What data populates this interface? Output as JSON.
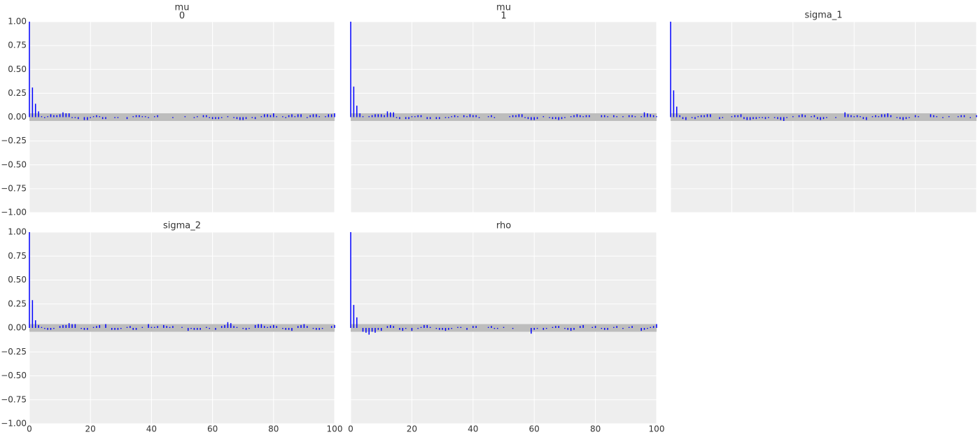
{
  "chart_data": [
    {
      "type": "stem",
      "title": "mu",
      "subtitle": "0",
      "color": "#0000ff",
      "band": [
        -0.04,
        0.04
      ],
      "grid": true,
      "x": [
        0,
        1,
        2,
        3,
        4,
        5,
        6,
        7,
        8,
        9,
        10,
        11,
        12,
        13,
        14,
        15,
        16,
        17,
        18,
        19,
        20,
        21,
        22,
        23,
        24,
        25,
        26,
        27,
        28,
        29,
        30,
        31,
        32,
        33,
        34,
        35,
        36,
        37,
        38,
        39,
        40,
        41,
        42,
        43,
        44,
        45,
        46,
        47,
        48,
        49,
        50,
        51,
        52,
        53,
        54,
        55,
        56,
        57,
        58,
        59,
        60,
        61,
        62,
        63,
        64,
        65,
        66,
        67,
        68,
        69,
        70,
        71,
        72,
        73,
        74,
        75,
        76,
        77,
        78,
        79,
        80,
        81,
        82,
        83,
        84,
        85,
        86,
        87,
        88,
        89,
        90,
        91,
        92,
        93,
        94,
        95,
        96,
        97,
        98,
        99,
        100
      ],
      "values": [
        1,
        0.31,
        0.14,
        0.06,
        0.01,
        -0.01,
        0.01,
        0.03,
        0.02,
        0.02,
        0.03,
        0.05,
        0.04,
        0.04,
        -0.01,
        -0.01,
        -0.02,
        0.0,
        -0.03,
        -0.03,
        -0.01,
        0.01,
        0.02,
        0.01,
        -0.02,
        -0.02,
        0.0,
        0.0,
        -0.01,
        -0.01,
        0.0,
        0.0,
        -0.02,
        0.0,
        0.01,
        0.02,
        0.02,
        0.01,
        0.01,
        -0.01,
        0.0,
        0.01,
        0.02,
        0.0,
        0.0,
        0.0,
        0.0,
        -0.01,
        0.0,
        0.0,
        0.0,
        0.01,
        0.0,
        0.0,
        -0.01,
        0.01,
        0.0,
        0.02,
        0.02,
        -0.01,
        -0.02,
        -0.02,
        -0.02,
        -0.01,
        0.0,
        0.01,
        0.0,
        -0.01,
        -0.02,
        -0.03,
        -0.03,
        -0.02,
        0.0,
        -0.01,
        -0.02,
        0.0,
        0.01,
        0.03,
        0.03,
        0.02,
        0.04,
        0.01,
        0.0,
        0.01,
        -0.01,
        0.02,
        0.03,
        0.01,
        0.03,
        0.03,
        0.0,
        -0.01,
        0.02,
        0.03,
        0.03,
        0.01,
        0.0,
        0.01,
        0.03,
        0.03,
        0.04
      ],
      "xlim": [
        0,
        100
      ],
      "xticks": [
        0,
        20,
        40,
        60,
        80,
        100
      ],
      "ylim": [
        -1,
        1
      ],
      "yticks": [
        {
          "value": 1,
          "label": "1.00"
        },
        {
          "value": 0.75,
          "label": "0.75"
        },
        {
          "value": 0.5,
          "label": "0.50"
        },
        {
          "value": 0.25,
          "label": "0.25"
        },
        {
          "value": 0,
          "label": "0.00"
        },
        {
          "value": -0.25,
          "label": "−0.25"
        },
        {
          "value": -0.5,
          "label": "−0.50"
        },
        {
          "value": -0.75,
          "label": "−0.75"
        },
        {
          "value": -1,
          "label": "−1.00"
        }
      ]
    },
    {
      "type": "stem",
      "title": "mu",
      "subtitle": "1",
      "color": "#0000ff",
      "band": [
        -0.04,
        0.04
      ],
      "grid": true,
      "x": [
        0,
        1,
        2,
        3,
        4,
        5,
        6,
        7,
        8,
        9,
        10,
        11,
        12,
        13,
        14,
        15,
        16,
        17,
        18,
        19,
        20,
        21,
        22,
        23,
        24,
        25,
        26,
        27,
        28,
        29,
        30,
        31,
        32,
        33,
        34,
        35,
        36,
        37,
        38,
        39,
        40,
        41,
        42,
        43,
        44,
        45,
        46,
        47,
        48,
        49,
        50,
        51,
        52,
        53,
        54,
        55,
        56,
        57,
        58,
        59,
        60,
        61,
        62,
        63,
        64,
        65,
        66,
        67,
        68,
        69,
        70,
        71,
        72,
        73,
        74,
        75,
        76,
        77,
        78,
        79,
        80,
        81,
        82,
        83,
        84,
        85,
        86,
        87,
        88,
        89,
        90,
        91,
        92,
        93,
        94,
        95,
        96,
        97,
        98,
        99,
        100
      ],
      "values": [
        1,
        0.32,
        0.12,
        0.04,
        0.01,
        0.0,
        0.01,
        0.02,
        0.03,
        0.03,
        0.03,
        0.02,
        0.06,
        0.05,
        0.05,
        -0.01,
        -0.02,
        0.0,
        -0.02,
        -0.02,
        0.01,
        0.01,
        0.02,
        0.02,
        0.0,
        -0.02,
        -0.02,
        0.0,
        -0.02,
        -0.02,
        0.0,
        -0.01,
        -0.01,
        0.01,
        0.02,
        0.01,
        0.0,
        0.02,
        0.01,
        0.03,
        0.02,
        0.02,
        -0.01,
        0.0,
        0.0,
        0.01,
        0.02,
        -0.01,
        0.0,
        0.0,
        0.0,
        0.0,
        0.01,
        0.02,
        0.02,
        0.03,
        0.03,
        -0.01,
        -0.02,
        -0.03,
        -0.03,
        -0.02,
        0.0,
        0.01,
        0.0,
        -0.01,
        -0.02,
        -0.02,
        -0.03,
        -0.02,
        -0.01,
        0.0,
        0.01,
        0.02,
        0.03,
        0.02,
        0.01,
        0.02,
        0.02,
        0.0,
        0.0,
        0.0,
        0.02,
        0.02,
        0.01,
        0.0,
        0.02,
        0.01,
        0.0,
        0.01,
        0.0,
        0.02,
        0.02,
        0.01,
        0.0,
        0.01,
        0.05,
        0.04,
        0.03,
        0.02,
        0.01
      ],
      "xlim": [
        0,
        100
      ],
      "xticks": [
        0,
        20,
        40,
        60,
        80,
        100
      ],
      "ylim": [
        -1,
        1
      ],
      "yticks": [
        {
          "value": 1,
          "label": "1.00"
        },
        {
          "value": 0.75,
          "label": "0.75"
        },
        {
          "value": 0.5,
          "label": "0.50"
        },
        {
          "value": 0.25,
          "label": "0.25"
        },
        {
          "value": 0,
          "label": "0.00"
        },
        {
          "value": -0.25,
          "label": "−0.25"
        },
        {
          "value": -0.5,
          "label": "−0.50"
        },
        {
          "value": -0.75,
          "label": "−0.75"
        },
        {
          "value": -1,
          "label": "−1.00"
        }
      ]
    },
    {
      "type": "stem",
      "title": "sigma_1",
      "color": "#0000ff",
      "band": [
        -0.04,
        0.04
      ],
      "grid": true,
      "x": [
        0,
        1,
        2,
        3,
        4,
        5,
        6,
        7,
        8,
        9,
        10,
        11,
        12,
        13,
        14,
        15,
        16,
        17,
        18,
        19,
        20,
        21,
        22,
        23,
        24,
        25,
        26,
        27,
        28,
        29,
        30,
        31,
        32,
        33,
        34,
        35,
        36,
        37,
        38,
        39,
        40,
        41,
        42,
        43,
        44,
        45,
        46,
        47,
        48,
        49,
        50,
        51,
        52,
        53,
        54,
        55,
        56,
        57,
        58,
        59,
        60,
        61,
        62,
        63,
        64,
        65,
        66,
        67,
        68,
        69,
        70,
        71,
        72,
        73,
        74,
        75,
        76,
        77,
        78,
        79,
        80,
        81,
        82,
        83,
        84,
        85,
        86,
        87,
        88,
        89,
        90,
        91,
        92,
        93,
        94,
        95,
        96,
        97,
        98,
        99,
        100
      ],
      "values": [
        1,
        0.28,
        0.11,
        0.02,
        -0.02,
        -0.03,
        0.0,
        -0.01,
        -0.02,
        0.01,
        0.02,
        0.02,
        0.03,
        0.03,
        0.0,
        0.0,
        -0.02,
        -0.01,
        0.0,
        0.0,
        0.01,
        0.02,
        0.02,
        0.03,
        -0.02,
        -0.03,
        -0.03,
        -0.02,
        -0.02,
        -0.01,
        -0.01,
        -0.02,
        -0.01,
        0.0,
        -0.01,
        -0.02,
        -0.03,
        -0.04,
        -0.01,
        0.0,
        0.01,
        0.0,
        0.02,
        0.03,
        0.02,
        0.0,
        0.01,
        0.02,
        -0.02,
        -0.03,
        -0.02,
        -0.01,
        0.0,
        0.0,
        -0.01,
        0.0,
        0.0,
        0.05,
        0.03,
        0.02,
        0.01,
        0.02,
        0.01,
        -0.02,
        -0.03,
        0.0,
        0.01,
        0.02,
        0.01,
        0.03,
        0.03,
        0.04,
        0.02,
        0.0,
        -0.01,
        -0.02,
        -0.03,
        -0.02,
        -0.01,
        0.0,
        0.02,
        0.01,
        0.0,
        0.0,
        0.0,
        0.03,
        0.02,
        0.01,
        0.0,
        -0.01,
        0.0,
        0.01,
        0.0,
        0.0,
        0.01,
        0.02,
        0.02,
        0.0,
        -0.01,
        0.0,
        0.02
      ],
      "xlim": [
        0,
        100
      ],
      "xticks": [
        0,
        20,
        40,
        60,
        80,
        100
      ],
      "ylim": [
        -1,
        1
      ],
      "yticks": [
        {
          "value": 1,
          "label": "1.00"
        },
        {
          "value": 0.75,
          "label": "0.75"
        },
        {
          "value": 0.5,
          "label": "0.50"
        },
        {
          "value": 0.25,
          "label": "0.25"
        },
        {
          "value": 0,
          "label": "0.00"
        },
        {
          "value": -0.25,
          "label": "−0.25"
        },
        {
          "value": -0.5,
          "label": "−0.50"
        },
        {
          "value": -0.75,
          "label": "−0.75"
        },
        {
          "value": -1,
          "label": "−1.00"
        }
      ]
    },
    {
      "type": "stem",
      "title": "sigma_2",
      "color": "#0000ff",
      "band": [
        -0.04,
        0.04
      ],
      "grid": true,
      "x": [
        0,
        1,
        2,
        3,
        4,
        5,
        6,
        7,
        8,
        9,
        10,
        11,
        12,
        13,
        14,
        15,
        16,
        17,
        18,
        19,
        20,
        21,
        22,
        23,
        24,
        25,
        26,
        27,
        28,
        29,
        30,
        31,
        32,
        33,
        34,
        35,
        36,
        37,
        38,
        39,
        40,
        41,
        42,
        43,
        44,
        45,
        46,
        47,
        48,
        49,
        50,
        51,
        52,
        53,
        54,
        55,
        56,
        57,
        58,
        59,
        60,
        61,
        62,
        63,
        64,
        65,
        66,
        67,
        68,
        69,
        70,
        71,
        72,
        73,
        74,
        75,
        76,
        77,
        78,
        79,
        80,
        81,
        82,
        83,
        84,
        85,
        86,
        87,
        88,
        89,
        90,
        91,
        92,
        93,
        94,
        95,
        96,
        97,
        98,
        99,
        100
      ],
      "values": [
        1,
        0.29,
        0.08,
        0.03,
        0.01,
        -0.01,
        -0.02,
        -0.02,
        -0.01,
        0.0,
        0.02,
        0.03,
        0.03,
        0.05,
        0.04,
        0.04,
        0.0,
        -0.01,
        -0.02,
        -0.02,
        0.0,
        0.01,
        0.02,
        0.03,
        0.0,
        0.04,
        0.0,
        -0.02,
        -0.02,
        -0.02,
        -0.01,
        0.0,
        0.01,
        0.02,
        -0.02,
        -0.02,
        0.0,
        0.01,
        0.0,
        0.04,
        0.01,
        0.01,
        0.02,
        0.0,
        0.03,
        0.02,
        0.01,
        0.02,
        0.0,
        0.0,
        0.01,
        0.0,
        -0.03,
        -0.01,
        -0.02,
        -0.02,
        -0.02,
        0.0,
        0.01,
        -0.01,
        0.0,
        -0.02,
        0.0,
        0.02,
        0.03,
        0.06,
        0.05,
        0.02,
        0.01,
        0.0,
        -0.01,
        -0.02,
        -0.01,
        0.0,
        0.03,
        0.04,
        0.04,
        0.02,
        0.01,
        0.02,
        0.03,
        0.02,
        0.0,
        -0.01,
        -0.02,
        -0.02,
        -0.03,
        0.0,
        0.02,
        0.03,
        0.04,
        0.02,
        0.0,
        -0.01,
        -0.02,
        -0.02,
        -0.01,
        0.0,
        0.0,
        0.02,
        0.03
      ],
      "xlim": [
        0,
        100
      ],
      "xticks": [
        0,
        20,
        40,
        60,
        80,
        100
      ],
      "ylim": [
        -1,
        1
      ],
      "yticks": [
        {
          "value": 1,
          "label": "1.00"
        },
        {
          "value": 0.75,
          "label": "0.75"
        },
        {
          "value": 0.5,
          "label": "0.50"
        },
        {
          "value": 0.25,
          "label": "0.25"
        },
        {
          "value": 0,
          "label": "0.00"
        },
        {
          "value": -0.25,
          "label": "−0.25"
        },
        {
          "value": -0.5,
          "label": "−0.50"
        },
        {
          "value": -0.75,
          "label": "−0.75"
        },
        {
          "value": -1,
          "label": "−1.00"
        }
      ]
    },
    {
      "type": "stem",
      "title": "rho",
      "color": "#0000ff",
      "band": [
        -0.04,
        0.04
      ],
      "grid": true,
      "x": [
        0,
        1,
        2,
        3,
        4,
        5,
        6,
        7,
        8,
        9,
        10,
        11,
        12,
        13,
        14,
        15,
        16,
        17,
        18,
        19,
        20,
        21,
        22,
        23,
        24,
        25,
        26,
        27,
        28,
        29,
        30,
        31,
        32,
        33,
        34,
        35,
        36,
        37,
        38,
        39,
        40,
        41,
        42,
        43,
        44,
        45,
        46,
        47,
        48,
        49,
        50,
        51,
        52,
        53,
        54,
        55,
        56,
        57,
        58,
        59,
        60,
        61,
        62,
        63,
        64,
        65,
        66,
        67,
        68,
        69,
        70,
        71,
        72,
        73,
        74,
        75,
        76,
        77,
        78,
        79,
        80,
        81,
        82,
        83,
        84,
        85,
        86,
        87,
        88,
        89,
        90,
        91,
        92,
        93,
        94,
        95,
        96,
        97,
        98,
        99,
        100
      ],
      "values": [
        1,
        0.24,
        0.11,
        0.0,
        -0.04,
        -0.05,
        -0.07,
        -0.04,
        -0.05,
        -0.02,
        -0.03,
        0.0,
        0.02,
        0.03,
        0.02,
        0.0,
        -0.02,
        -0.03,
        -0.01,
        0.0,
        -0.03,
        0.0,
        -0.01,
        0.01,
        0.03,
        0.03,
        0.01,
        0.0,
        -0.01,
        -0.02,
        -0.02,
        -0.03,
        -0.02,
        -0.01,
        0.0,
        0.01,
        0.01,
        0.0,
        -0.02,
        0.0,
        0.02,
        0.02,
        0.0,
        0.0,
        0.0,
        0.01,
        0.02,
        -0.01,
        -0.01,
        0.0,
        0.01,
        0.0,
        0.0,
        -0.01,
        0.0,
        0.0,
        0.0,
        0.0,
        0.0,
        -0.06,
        -0.02,
        -0.01,
        0.0,
        -0.02,
        -0.01,
        0.0,
        0.01,
        0.02,
        0.02,
        0.0,
        -0.01,
        -0.02,
        -0.03,
        -0.02,
        0.0,
        0.02,
        0.03,
        0.0,
        0.0,
        0.01,
        0.02,
        0.0,
        -0.01,
        -0.02,
        -0.02,
        0.0,
        0.01,
        0.02,
        0.0,
        -0.01,
        0.0,
        0.01,
        0.02,
        0.0,
        0.0,
        -0.03,
        -0.02,
        -0.01,
        0.01,
        0.02,
        0.04
      ],
      "xlim": [
        0,
        100
      ],
      "xticks": [
        0,
        20,
        40,
        60,
        80,
        100
      ],
      "ylim": [
        -1,
        1
      ],
      "yticks": [
        {
          "value": 1,
          "label": "1.00"
        },
        {
          "value": 0.75,
          "label": "0.75"
        },
        {
          "value": 0.5,
          "label": "0.50"
        },
        {
          "value": 0.25,
          "label": "0.25"
        },
        {
          "value": 0,
          "label": "0.00"
        },
        {
          "value": -0.25,
          "label": "−0.25"
        },
        {
          "value": -0.5,
          "label": "−0.50"
        },
        {
          "value": -0.75,
          "label": "−0.75"
        },
        {
          "value": -1,
          "label": "−1.00"
        }
      ]
    }
  ]
}
